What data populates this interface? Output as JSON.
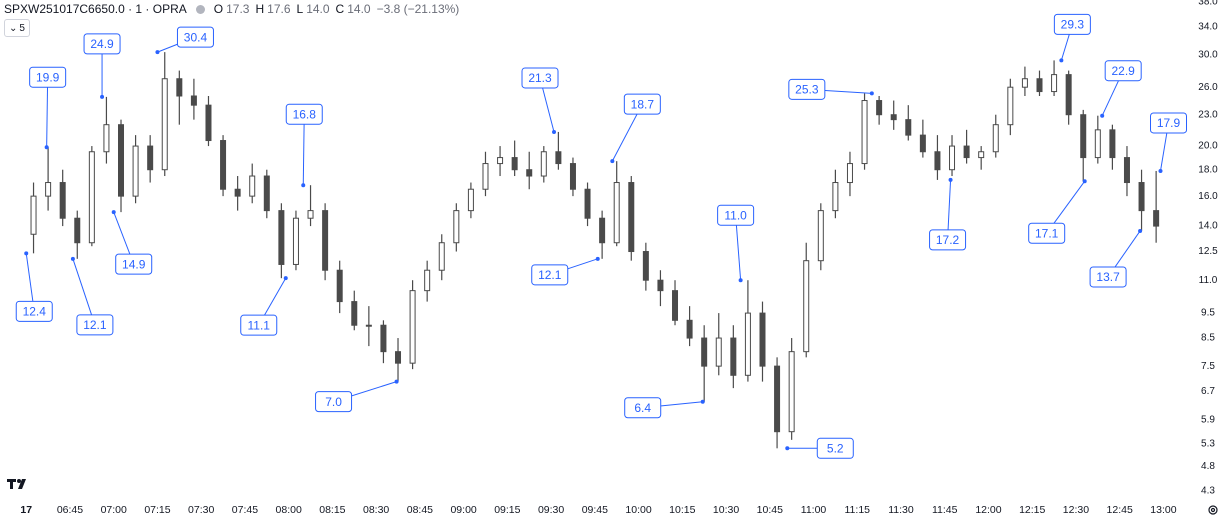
{
  "header": {
    "symbol": "SPXW251017C6650.0 · 1 · OPRA",
    "o_label": "O",
    "open": "17.3",
    "h_label": "H",
    "high": "17.6",
    "l_label": "L",
    "low": "14.0",
    "c_label": "C",
    "close": "14.0",
    "change": "−3.8 (−21.13%)",
    "interval_button": "5"
  },
  "chart_data": {
    "type": "candlestick",
    "color": "#4a4a4a",
    "log_scale": true,
    "xlim": [
      "06:21",
      "13:05"
    ],
    "ylim": [
      4.13,
      38.35
    ],
    "xticks": [
      {
        "value": "06:30",
        "label": "17"
      },
      "06:45",
      "07:00",
      "07:15",
      "07:30",
      "07:45",
      "08:00",
      "08:15",
      "08:30",
      "08:45",
      "09:00",
      "09:15",
      "09:30",
      "09:45",
      "10:00",
      "10:15",
      "10:30",
      "10:45",
      "11:00",
      "11:15",
      "11:30",
      "11:45",
      "12:00",
      "12:15",
      "12:30",
      "12:45",
      "13:00"
    ],
    "yticks": [
      4.3,
      4.8,
      5.3,
      5.9,
      6.7,
      7.5,
      8.5,
      9.5,
      {
        "value": 11,
        "label": "11.0"
      },
      12.5,
      {
        "value": 14,
        "label": "14.0"
      },
      {
        "value": 16,
        "label": "16.0"
      },
      {
        "value": 18,
        "label": "18.0"
      },
      {
        "value": 20,
        "label": "20.0"
      },
      {
        "value": 23,
        "label": "23.0"
      },
      {
        "value": 26,
        "label": "26.0"
      },
      {
        "value": 30,
        "label": "30.0"
      },
      {
        "value": 34,
        "label": "34.0"
      },
      {
        "value": 38,
        "label": "38.0"
      }
    ],
    "x": [
      "06:30",
      "06:35",
      "06:40",
      "06:45",
      "06:50",
      "06:55",
      "07:00",
      "07:05",
      "07:10",
      "07:15",
      "07:20",
      "07:25",
      "07:30",
      "07:35",
      "07:40",
      "07:45",
      "07:50",
      "07:55",
      "08:00",
      "08:05",
      "08:10",
      "08:15",
      "08:20",
      "08:25",
      "08:30",
      "08:35",
      "08:40",
      "08:45",
      "08:50",
      "08:55",
      "09:00",
      "09:05",
      "09:10",
      "09:15",
      "09:20",
      "09:25",
      "09:30",
      "09:35",
      "09:40",
      "09:45",
      "09:50",
      "09:55",
      "10:00",
      "10:05",
      "10:10",
      "10:15",
      "10:20",
      "10:25",
      "10:30",
      "10:35",
      "10:40",
      "10:45",
      "10:50",
      "10:55",
      "11:00",
      "11:05",
      "11:10",
      "11:15",
      "11:20",
      "11:25",
      "11:30",
      "11:35",
      "11:40",
      "11:45",
      "11:50",
      "11:55",
      "12:00",
      "12:05",
      "12:10",
      "12:15",
      "12:20",
      "12:25",
      "12:30",
      "12:35",
      "12:40",
      "12:45",
      "12:50",
      "12:55"
    ],
    "open": [
      13.5,
      16,
      17,
      14.5,
      13,
      19.5,
      22,
      16,
      20,
      18,
      27,
      25,
      24,
      20.5,
      16.5,
      16,
      17.5,
      15,
      11.8,
      14.5,
      15,
      11.5,
      10,
      9,
      9,
      8,
      7.6,
      10.5,
      11.5,
      13,
      15,
      16.5,
      18.5,
      19,
      18,
      17.5,
      19.5,
      18.5,
      16.5,
      14.5,
      13,
      17,
      12.5,
      11,
      10.5,
      9.2,
      8.5,
      7.5,
      8.5,
      7.2,
      9.5,
      7.5,
      5.6,
      8,
      12,
      15,
      17,
      18.5,
      24.5,
      23,
      22.5,
      21,
      19.5,
      18,
      20,
      19,
      19.5,
      22,
      26,
      27,
      25.5,
      27.5,
      23,
      19,
      21.5,
      19,
      17,
      15
    ],
    "high": [
      17,
      19.9,
      18,
      15,
      20,
      24.9,
      22.5,
      21,
      21,
      30.4,
      28,
      27,
      25,
      21,
      17.5,
      18.5,
      18,
      15.5,
      15,
      16.8,
      15.5,
      12,
      10.5,
      9.8,
      9.2,
      8.5,
      11,
      12,
      13.5,
      15.5,
      17,
      19.5,
      20,
      20.5,
      19.5,
      20,
      21.3,
      19,
      17,
      15,
      18.7,
      17.5,
      13,
      11.5,
      11,
      9.8,
      9,
      9.5,
      9,
      11,
      10,
      7.8,
      8.5,
      13,
      15.5,
      18,
      19.5,
      25.3,
      25,
      24.5,
      24,
      22.5,
      21,
      21,
      21.5,
      20,
      23,
      27,
      28.5,
      28,
      29.3,
      28,
      23.5,
      22.9,
      22,
      20,
      18,
      17.9
    ],
    "low": [
      12.4,
      15,
      14,
      12.1,
      12.8,
      18.5,
      14.9,
      15.5,
      17,
      17.5,
      22,
      22.5,
      20,
      16,
      15,
      15.5,
      14.5,
      11.1,
      11.5,
      14,
      11,
      9.5,
      8.8,
      8.2,
      7.6,
      7,
      7.4,
      10,
      11,
      12.5,
      14.5,
      16,
      17.5,
      17.5,
      16.5,
      17,
      18,
      16,
      14,
      12.1,
      12.8,
      12,
      10.5,
      9.8,
      9,
      8.2,
      6.4,
      7.2,
      6.8,
      7,
      7,
      5.2,
      5.4,
      7.8,
      11.5,
      14.5,
      16,
      18,
      22,
      21.5,
      20.5,
      19,
      17.2,
      17.5,
      18.5,
      18,
      19,
      21,
      25,
      25,
      25,
      22,
      17.1,
      18.5,
      18,
      16,
      13.7,
      13
    ],
    "close": [
      16,
      17,
      14.5,
      13,
      19.5,
      22,
      16,
      20,
      18,
      27,
      25,
      24,
      20.5,
      16.5,
      16,
      17.5,
      15,
      11.8,
      14.5,
      15,
      11.5,
      10,
      9,
      9,
      8,
      7.6,
      10.5,
      11.5,
      13,
      15,
      16.5,
      18.5,
      19,
      18,
      17.5,
      19.5,
      18.5,
      16.5,
      14.5,
      13,
      17,
      12.5,
      11,
      10.5,
      9.2,
      8.5,
      7.5,
      8.5,
      7.2,
      9.5,
      7.5,
      5.6,
      8,
      12,
      15,
      17,
      18.5,
      24.5,
      23,
      22.5,
      21,
      19.5,
      18,
      20,
      19,
      19.5,
      22,
      26,
      27,
      25.5,
      27.5,
      23,
      19,
      21.5,
      19,
      17,
      15,
      14
    ],
    "annotations": {
      "color": "#2962ff",
      "x": [
        "06:30",
        "06:37",
        "06:46",
        "06:56",
        "07:00",
        "07:15",
        "07:59",
        "08:05",
        "08:37",
        "09:31",
        "09:46",
        "09:51",
        "10:22",
        "10:35",
        "10:51",
        "11:20",
        "11:47",
        "12:25",
        "12:33",
        "12:39",
        "12:52",
        "12:59"
      ],
      "values": [
        12.4,
        19.9,
        12.1,
        24.9,
        14.9,
        30.4,
        11.1,
        16.8,
        7,
        21.3,
        12.1,
        18.7,
        6.4,
        11,
        5.2,
        25.3,
        17.2,
        29.3,
        17.1,
        22.9,
        13.7,
        17.9
      ],
      "value_labels": [
        "12.4",
        "19.9",
        "12.1",
        "24.9",
        "14.9",
        "30.4",
        "11.1",
        "16.8",
        "7.0",
        "21.3",
        "12.1",
        "18.7",
        "6.4",
        "11.0",
        "5.2",
        "25.3",
        "17.2",
        "29.3",
        "17.1",
        "22.9",
        "13.7",
        "17.9"
      ]
    }
  }
}
